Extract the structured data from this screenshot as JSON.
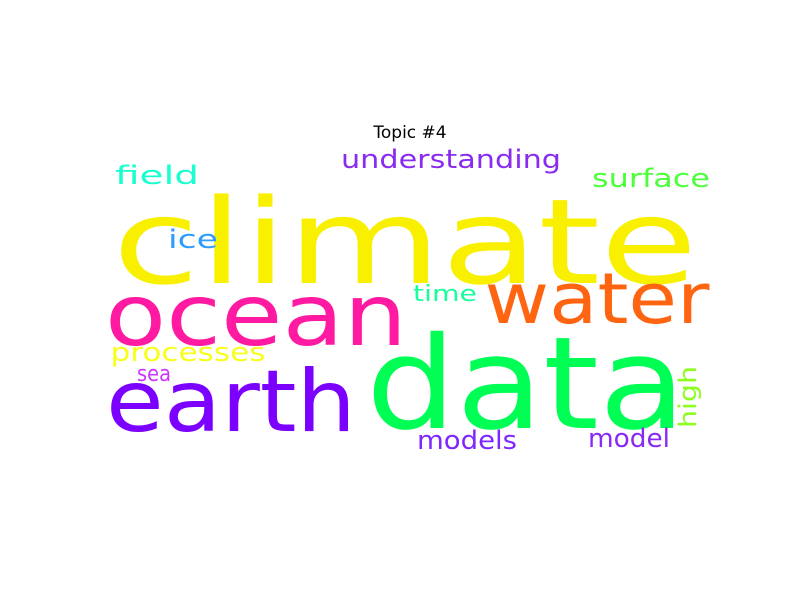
{
  "chart_data": {
    "type": "wordcloud",
    "title": "Topic #4",
    "words": [
      {
        "text": "climate",
        "color": "#f9f000"
      },
      {
        "text": "data",
        "color": "#00ff55"
      },
      {
        "text": "ocean",
        "color": "#ff1aa1"
      },
      {
        "text": "water",
        "color": "#ff6410"
      },
      {
        "text": "earth",
        "color": "#7b00ff"
      },
      {
        "text": "understanding",
        "color": "#8a2cf0"
      },
      {
        "text": "field",
        "color": "#19ffd0"
      },
      {
        "text": "surface",
        "color": "#4dff3a"
      },
      {
        "text": "ice",
        "color": "#2e9cff"
      },
      {
        "text": "time",
        "color": "#17ff9a"
      },
      {
        "text": "processes",
        "color": "#f7ff1a"
      },
      {
        "text": "sea",
        "color": "#cc33ff"
      },
      {
        "text": "high",
        "color": "#8cff1f"
      },
      {
        "text": "models",
        "color": "#7e27ff"
      },
      {
        "text": "model",
        "color": "#8a28f5"
      }
    ]
  }
}
